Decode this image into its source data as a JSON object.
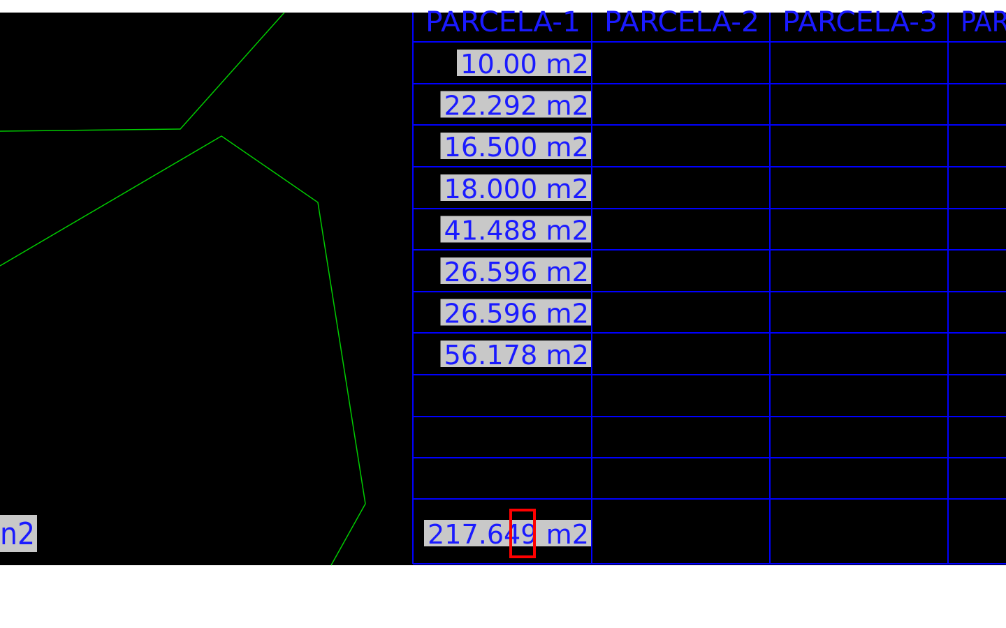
{
  "colors": {
    "background": "#000000",
    "grid": "#0000ff",
    "text": "#1a1aff",
    "polyline": "#00cc00",
    "highlight": "#c8c8c8",
    "marker": "#ff0000"
  },
  "table": {
    "headers": [
      "PARCELA-1",
      "PARCELA-2",
      "PARCELA-3",
      "PAR"
    ],
    "rows": [
      "10.00 m2",
      "22.292 m2",
      "16.500 m2",
      "18.000 m2",
      "41.488 m2",
      "26.596 m2",
      "26.596 m2",
      "56.178 m2",
      "",
      "",
      ""
    ],
    "total": "217.649 m2"
  },
  "side_label": "n2"
}
